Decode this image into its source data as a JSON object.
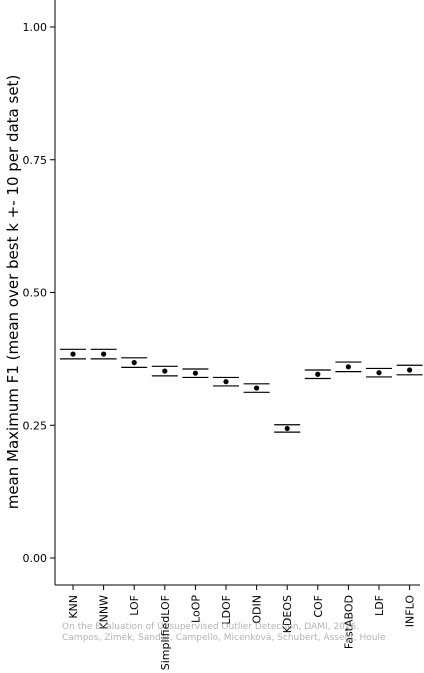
{
  "chart_data": {
    "type": "scatter",
    "title": "",
    "xlabel": "",
    "ylabel": "mean Maximum F1 (mean over best k +- 10 per data set)",
    "ylim": [
      0,
      1.05
    ],
    "yticks": [
      0.0,
      0.25,
      0.5,
      0.75,
      1.0
    ],
    "ytick_labels": [
      "0.00",
      "0.25",
      "0.50",
      "0.75",
      "1.00"
    ],
    "grid": false,
    "categories": [
      "KNN",
      "KNNW",
      "LOF",
      "SimplifiedLOF",
      "LoOP",
      "LDOF",
      "ODIN",
      "KDEOS",
      "COF",
      "FastABOD",
      "LDF",
      "INFLO"
    ],
    "series": [
      {
        "mean": [
          0.384,
          0.384,
          0.368,
          0.352,
          0.348,
          0.332,
          0.32,
          0.244,
          0.346,
          0.36,
          0.349,
          0.354
        ],
        "upper": [
          0.393,
          0.393,
          0.377,
          0.361,
          0.356,
          0.34,
          0.328,
          0.251,
          0.354,
          0.369,
          0.357,
          0.363
        ],
        "lower": [
          0.375,
          0.375,
          0.359,
          0.343,
          0.34,
          0.324,
          0.312,
          0.237,
          0.338,
          0.351,
          0.341,
          0.345
        ]
      }
    ]
  },
  "watermark": {
    "line1": "On the Evaluation of Unsupervised Outlier Detection, DAMI, 2016.",
    "line2": "Campos, Zimek, Sander, Campello, Micenková, Schubert, Assent, Houle"
  }
}
